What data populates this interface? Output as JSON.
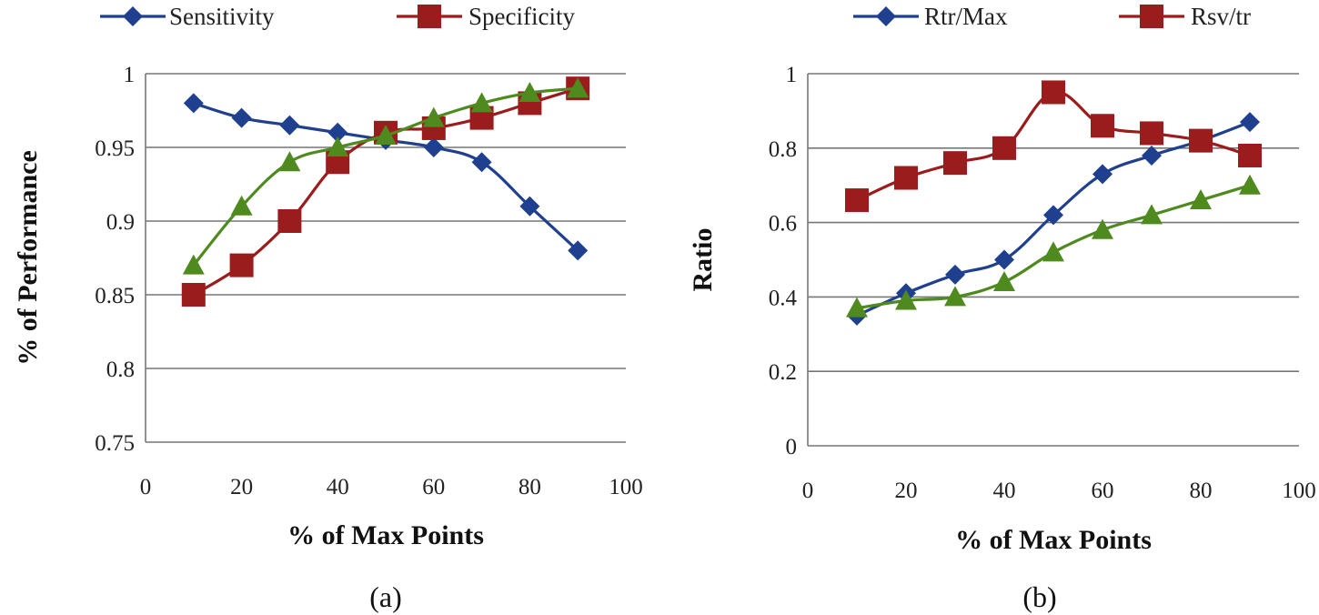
{
  "chart_data": [
    {
      "type": "line",
      "panel": "(a)",
      "title": "",
      "xlabel": "% of Max Points",
      "ylabel": "% of Performance",
      "xlim": [
        0,
        100
      ],
      "ylim": [
        0.75,
        1
      ],
      "xticks": [
        0,
        20,
        40,
        60,
        80,
        100
      ],
      "yticks": [
        0.75,
        0.8,
        0.85,
        0.9,
        0.95,
        1
      ],
      "ytick_labels": [
        "0.75",
        "0.8",
        "0.85",
        "0.9",
        "0.95",
        "1"
      ],
      "grid": "horizontal",
      "x": [
        10,
        20,
        30,
        40,
        50,
        60,
        70,
        80,
        90
      ],
      "series": [
        {
          "name": "Sensitivity",
          "color": "#1f3f8f",
          "marker": "diamond",
          "in_legend": true,
          "values": [
            0.98,
            0.97,
            0.965,
            0.96,
            0.955,
            0.95,
            0.94,
            0.91,
            0.88
          ]
        },
        {
          "name": "Specificity",
          "color": "#9b1c1c",
          "marker": "square",
          "in_legend": true,
          "values": [
            0.85,
            0.87,
            0.9,
            0.94,
            0.96,
            0.963,
            0.97,
            0.98,
            0.99
          ]
        },
        {
          "name": "",
          "color": "#4e8a1e",
          "marker": "triangle",
          "in_legend": false,
          "values": [
            0.87,
            0.91,
            0.94,
            0.95,
            0.958,
            0.97,
            0.98,
            0.987,
            0.99
          ]
        }
      ]
    },
    {
      "type": "line",
      "panel": "(b)",
      "title": "",
      "xlabel": "% of Max Points",
      "ylabel": "Ratio",
      "xlim": [
        0,
        100
      ],
      "ylim": [
        0,
        1
      ],
      "xticks": [
        0,
        20,
        40,
        60,
        80,
        100
      ],
      "yticks": [
        0,
        0.2,
        0.4,
        0.6,
        0.8,
        1
      ],
      "ytick_labels": [
        "0",
        "0.2",
        "0.4",
        "0.6",
        "0.8",
        "1"
      ],
      "grid": "horizontal",
      "x": [
        10,
        20,
        30,
        40,
        50,
        60,
        70,
        80,
        90
      ],
      "series": [
        {
          "name": "Rtr/Max",
          "color": "#1f3f8f",
          "marker": "diamond",
          "in_legend": true,
          "values": [
            0.35,
            0.41,
            0.46,
            0.5,
            0.62,
            0.73,
            0.78,
            0.82,
            0.87
          ]
        },
        {
          "name": "Rsv/tr",
          "color": "#9b1c1c",
          "marker": "square",
          "in_legend": true,
          "values": [
            0.66,
            0.72,
            0.76,
            0.8,
            0.95,
            0.86,
            0.84,
            0.82,
            0.78
          ]
        },
        {
          "name": "",
          "color": "#4e8a1e",
          "marker": "triangle",
          "in_legend": false,
          "values": [
            0.37,
            0.39,
            0.4,
            0.44,
            0.52,
            0.58,
            0.62,
            0.66,
            0.7
          ]
        }
      ]
    }
  ]
}
